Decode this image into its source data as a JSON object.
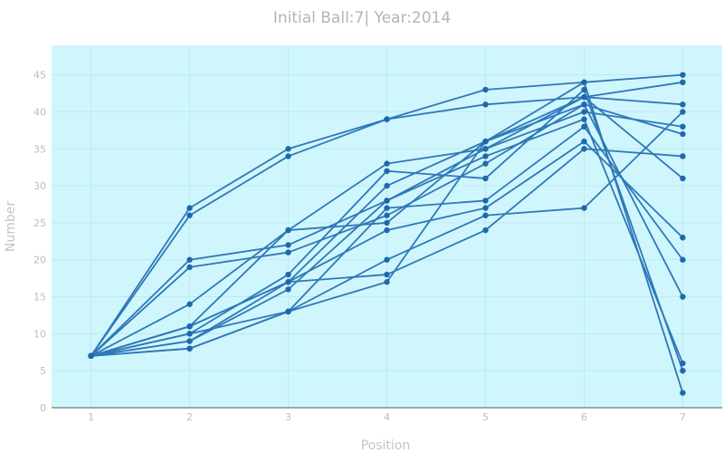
{
  "chart_data": {
    "type": "line",
    "title": "Initial Ball:7| Year:2014",
    "xlabel": "Position",
    "ylabel": "Number",
    "x": [
      1,
      2,
      3,
      4,
      5,
      6,
      7
    ],
    "x_ticks": [
      "1",
      "2",
      "3",
      "4",
      "5",
      "6",
      "7"
    ],
    "y_ticks": [
      "0",
      "5",
      "10",
      "15",
      "20",
      "25",
      "30",
      "35",
      "40",
      "45"
    ],
    "xlim": [
      0.6,
      7.4
    ],
    "ylim": [
      0,
      49
    ],
    "grid": true,
    "legend": "none",
    "series": [
      {
        "values": [
          7,
          27,
          35,
          39,
          43,
          44,
          45
        ]
      },
      {
        "values": [
          7,
          26,
          34,
          39,
          41,
          42,
          41
        ]
      },
      {
        "values": [
          7,
          20,
          22,
          28,
          35,
          42,
          44
        ]
      },
      {
        "values": [
          7,
          19,
          21,
          26,
          33,
          41,
          37
        ]
      },
      {
        "values": [
          7,
          14,
          24,
          25,
          36,
          42,
          31
        ]
      },
      {
        "values": [
          7,
          11,
          24,
          33,
          35,
          40,
          38
        ]
      },
      {
        "values": [
          7,
          11,
          17,
          30,
          36,
          44,
          2
        ]
      },
      {
        "values": [
          7,
          10,
          18,
          32,
          31,
          43,
          5
        ]
      },
      {
        "values": [
          7,
          9,
          16,
          28,
          34,
          39,
          6
        ]
      },
      {
        "values": [
          7,
          8,
          13,
          20,
          26,
          27,
          40
        ]
      },
      {
        "values": [
          7,
          8,
          13,
          17,
          36,
          41,
          15
        ]
      },
      {
        "values": [
          7,
          11,
          17,
          18,
          24,
          35,
          34
        ]
      },
      {
        "values": [
          7,
          10,
          13,
          27,
          28,
          38,
          20
        ]
      },
      {
        "values": [
          7,
          9,
          17,
          24,
          27,
          36,
          23
        ]
      }
    ]
  },
  "colors": {
    "plot_bg": "#cff6fd",
    "line": "#2f78b8",
    "marker": "#1f68ab",
    "axis": "#8c8c8c",
    "grid": "#bfe9f2"
  }
}
